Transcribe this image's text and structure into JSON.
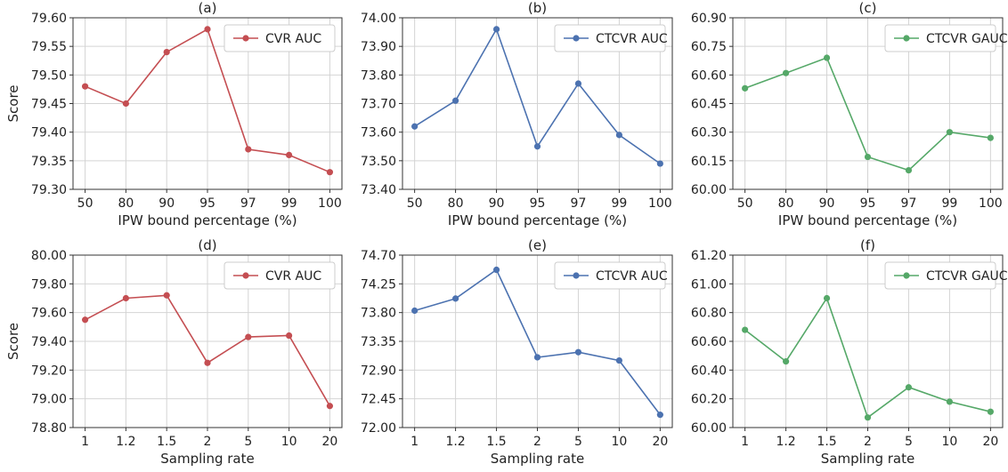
{
  "chart_data": [
    {
      "type": "line",
      "title": "(a)",
      "xlabel": "IPW bound percentage (%)",
      "ylabel": "Score",
      "categories": [
        "50",
        "80",
        "90",
        "95",
        "97",
        "99",
        "100"
      ],
      "series": [
        {
          "name": "CVR AUC",
          "values": [
            79.48,
            79.45,
            79.54,
            79.58,
            79.37,
            79.36,
            79.33
          ],
          "color": "#c44e52"
        }
      ],
      "ylim": [
        79.3,
        79.6
      ],
      "yticks": [
        "79.30",
        "79.35",
        "79.40",
        "79.45",
        "79.50",
        "79.55",
        "79.60"
      ],
      "grid": true,
      "legend": "upper-right"
    },
    {
      "type": "line",
      "title": "(b)",
      "xlabel": "IPW bound percentage (%)",
      "ylabel": "",
      "categories": [
        "50",
        "80",
        "90",
        "95",
        "97",
        "99",
        "100"
      ],
      "series": [
        {
          "name": "CTCVR AUC",
          "values": [
            73.62,
            73.71,
            73.96,
            73.55,
            73.77,
            73.59,
            73.49
          ],
          "color": "#4c72b0"
        }
      ],
      "ylim": [
        73.4,
        74.0
      ],
      "yticks": [
        "73.40",
        "73.50",
        "73.60",
        "73.70",
        "73.80",
        "73.90",
        "74.00"
      ],
      "grid": true,
      "legend": "upper-right"
    },
    {
      "type": "line",
      "title": "(c)",
      "xlabel": "IPW bound percentage (%)",
      "ylabel": "",
      "categories": [
        "50",
        "80",
        "90",
        "95",
        "97",
        "99",
        "100"
      ],
      "series": [
        {
          "name": "CTCVR GAUC",
          "values": [
            60.53,
            60.61,
            60.69,
            60.17,
            60.1,
            60.3,
            60.27
          ],
          "color": "#55a868"
        }
      ],
      "ylim": [
        60.0,
        60.9
      ],
      "yticks": [
        "60.00",
        "60.15",
        "60.30",
        "60.45",
        "60.60",
        "60.75",
        "60.90"
      ],
      "grid": true,
      "legend": "upper-right"
    },
    {
      "type": "line",
      "title": "(d)",
      "xlabel": "Sampling rate",
      "ylabel": "Score",
      "categories": [
        "1",
        "1.2",
        "1.5",
        "2",
        "5",
        "10",
        "20"
      ],
      "series": [
        {
          "name": "CVR AUC",
          "values": [
            79.55,
            79.7,
            79.72,
            79.25,
            79.43,
            79.44,
            78.95
          ],
          "color": "#c44e52"
        }
      ],
      "ylim": [
        78.8,
        80.0
      ],
      "yticks": [
        "78.80",
        "79.00",
        "79.20",
        "79.40",
        "79.60",
        "79.80",
        "80.00"
      ],
      "grid": true,
      "legend": "upper-right"
    },
    {
      "type": "line",
      "title": "(e)",
      "xlabel": "Sampling rate",
      "ylabel": "",
      "categories": [
        "1",
        "1.2",
        "1.5",
        "2",
        "5",
        "10",
        "20"
      ],
      "series": [
        {
          "name": "CTCVR AUC",
          "values": [
            73.83,
            74.02,
            74.47,
            73.1,
            73.18,
            73.05,
            72.2
          ],
          "color": "#4c72b0"
        }
      ],
      "ylim": [
        72.0,
        74.7
      ],
      "yticks": [
        "72.00",
        "72.45",
        "72.90",
        "73.35",
        "73.80",
        "74.25",
        "74.70"
      ],
      "grid": true,
      "legend": "upper-right"
    },
    {
      "type": "line",
      "title": "(f)",
      "xlabel": "Sampling rate",
      "ylabel": "",
      "categories": [
        "1",
        "1.2",
        "1.5",
        "2",
        "5",
        "10",
        "20"
      ],
      "series": [
        {
          "name": "CTCVR GAUC",
          "values": [
            60.68,
            60.46,
            60.9,
            60.07,
            60.28,
            60.18,
            60.11
          ],
          "color": "#55a868"
        }
      ],
      "ylim": [
        60.0,
        61.2
      ],
      "yticks": [
        "60.00",
        "60.20",
        "60.40",
        "60.60",
        "60.80",
        "61.00",
        "61.20"
      ],
      "grid": true,
      "legend": "upper-right"
    }
  ]
}
